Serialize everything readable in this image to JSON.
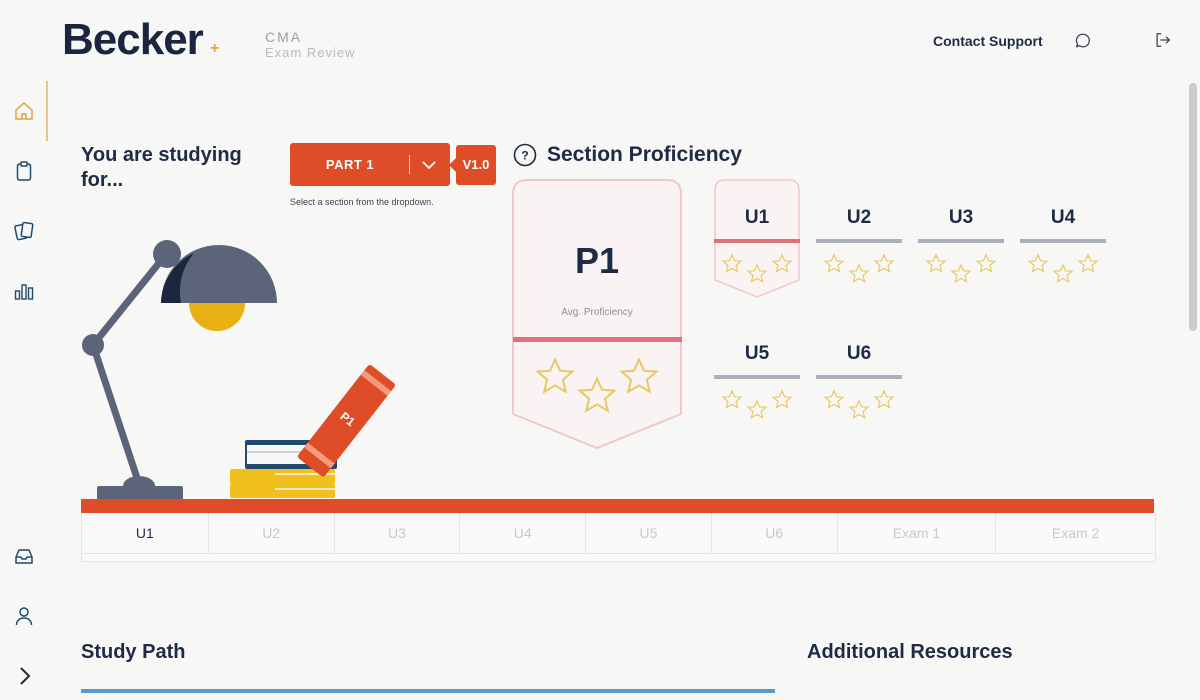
{
  "header": {
    "logo": "Becker",
    "product_line1": "CMA",
    "product_line2": "Exam Review",
    "contact_support": "Contact Support"
  },
  "study_selector": {
    "heading": "You are studying for...",
    "selected_part": "PART 1",
    "version": "V1.0",
    "hint": "Select a section from the dropdown."
  },
  "proficiency": {
    "title": "Section Proficiency",
    "main_badge": {
      "label": "P1",
      "caption": "Avg. Proficiency",
      "stars_filled": 0,
      "stars_total": 3
    },
    "units": [
      {
        "label": "U1",
        "stars_filled": 0,
        "stars_total": 3
      },
      {
        "label": "U2",
        "stars_filled": 0,
        "stars_total": 3
      },
      {
        "label": "U3",
        "stars_filled": 0,
        "stars_total": 3
      },
      {
        "label": "U4",
        "stars_filled": 0,
        "stars_total": 3
      },
      {
        "label": "U5",
        "stars_filled": 0,
        "stars_total": 3
      },
      {
        "label": "U6",
        "stars_filled": 0,
        "stars_total": 3
      }
    ]
  },
  "illustration": {
    "book_label": "P1"
  },
  "tabs": [
    "U1",
    "U2",
    "U3",
    "U4",
    "U5",
    "U6",
    "Exam 1",
    "Exam 2"
  ],
  "active_tab": "U1",
  "sections": {
    "study_path": "Study Path",
    "additional_resources": "Additional Resources"
  },
  "colors": {
    "accent": "#de4d27",
    "navy": "#1f2a44",
    "gold": "#e9a73b",
    "active_unit_line": "#e0707a",
    "inactive_unit_line": "#aab0bb",
    "study_path_bar": "#5b9ac7"
  },
  "icons": {
    "nav": [
      "home-icon",
      "clipboard-icon",
      "flashcards-icon",
      "bar-chart-icon",
      "inbox-icon",
      "user-icon",
      "chevron-right-icon"
    ],
    "header": [
      "chat-icon",
      "logout-icon"
    ]
  }
}
